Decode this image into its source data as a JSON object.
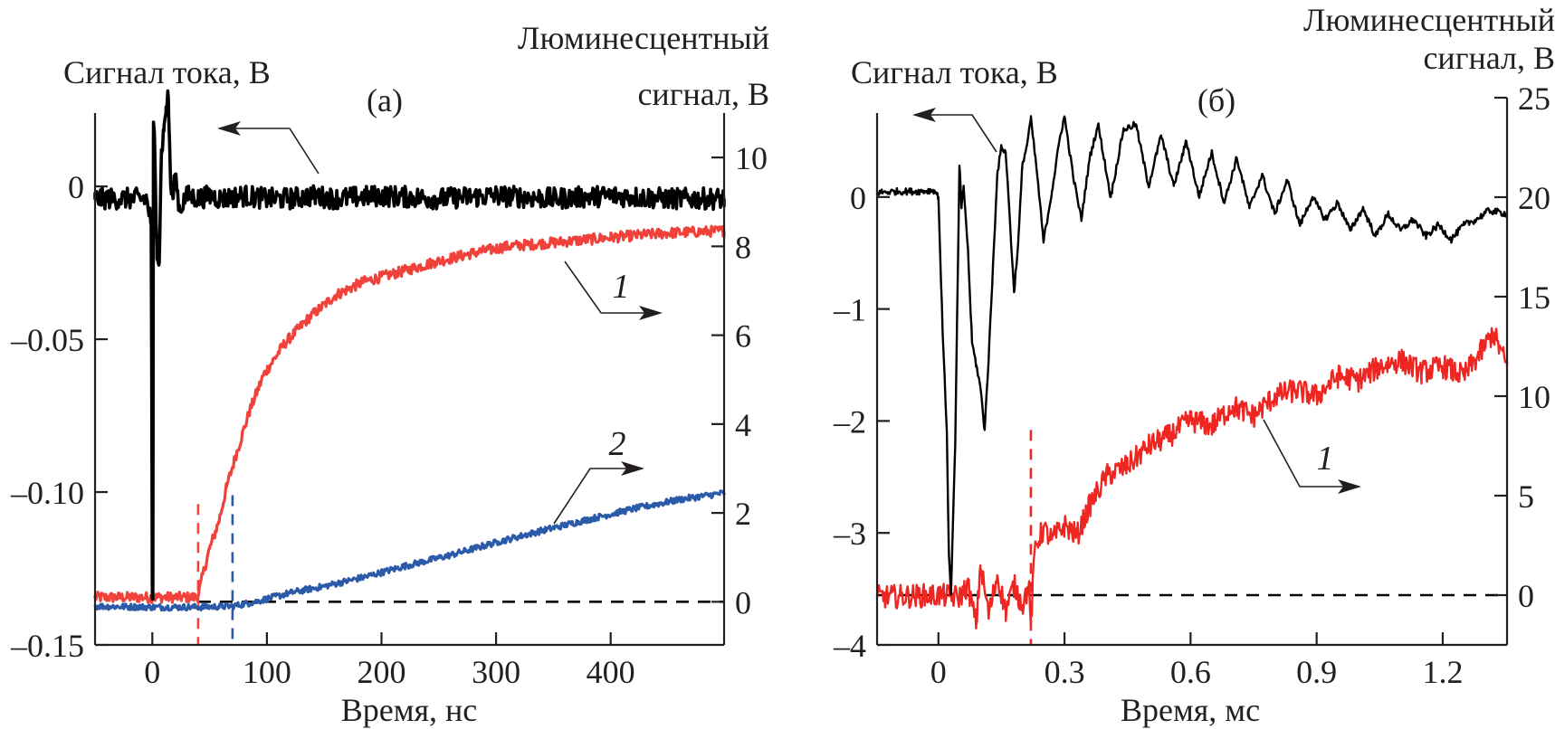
{
  "colors": {
    "current": "#000000",
    "lum1": "#f0413a",
    "lum1_b": "#ee2622",
    "lum2": "#2a5aa8",
    "baseline": "#000000",
    "text": "#231f20"
  },
  "chart_data": [
    {
      "id": "a",
      "type": "line",
      "panel_label": "(а)",
      "xlabel": "Время, нс",
      "ylabel_left": "Сигнал тока, В",
      "ylabel_right_line1": "Люминесцентный",
      "ylabel_right_line2": "сигнал, В",
      "xlim": [
        -50,
        499
      ],
      "ylim_left": [
        -0.15,
        0.024
      ],
      "ylim_right": [
        -0.97,
        11.0
      ],
      "x_ticks": [
        0,
        100,
        200,
        300,
        400
      ],
      "x_tick_labels": [
        "0",
        "100",
        "200",
        "300",
        "400"
      ],
      "y_left_ticks": [
        0,
        -0.05,
        -0.1,
        -0.15
      ],
      "y_left_tick_labels": [
        "0",
        "–0.05",
        "–0.10",
        "–0.15"
      ],
      "y_right_ticks": [
        0,
        2,
        4,
        6,
        8,
        10
      ],
      "y_right_tick_labels": [
        "0",
        "2",
        "4",
        "6",
        "8",
        "10"
      ],
      "grid": false,
      "series": [
        {
          "name": "current",
          "axis": "left",
          "color_key": "current",
          "x": [
            -50,
            -5,
            -1,
            0,
            0.5,
            1,
            2,
            4,
            6,
            8,
            10,
            12,
            14,
            16,
            18,
            20,
            22,
            24,
            28,
            32,
            40,
            50,
            60,
            80,
            100,
            120,
            140,
            160,
            200,
            250,
            300,
            350,
            400,
            450,
            499
          ],
          "y": [
            -0.004,
            -0.004,
            -0.012,
            -0.135,
            -0.135,
            0.021,
            0.015,
            -0.02,
            -0.025,
            0.012,
            0.018,
            0.026,
            0.029,
            0.0,
            -0.004,
            0.004,
            -0.002,
            -0.008,
            -0.004,
            -0.003,
            -0.004,
            -0.003,
            -0.004,
            -0.003,
            -0.004,
            -0.004,
            -0.003,
            -0.004,
            -0.003,
            -0.004,
            -0.003,
            -0.004,
            -0.003,
            -0.004,
            -0.004
          ],
          "noise_amplitude": 0.0035
        },
        {
          "name": "1",
          "axis": "right",
          "color_key": "lum1",
          "x": [
            -50,
            0,
            38,
            40,
            45,
            50,
            58,
            65,
            73,
            85,
            97,
            115,
            137,
            160,
            184,
            220,
            247,
            280,
            310,
            357,
            400,
            450,
            499
          ],
          "y": [
            0.1,
            0.1,
            0.1,
            0.15,
            0.7,
            1.2,
            1.8,
            2.6,
            3.3,
            4.3,
            5.1,
            5.8,
            6.4,
            6.9,
            7.2,
            7.45,
            7.65,
            7.85,
            8.0,
            8.1,
            8.2,
            8.3,
            8.35
          ],
          "noise_amplitude": 0.12
        },
        {
          "name": "2",
          "axis": "right",
          "color_key": "lum2",
          "x": [
            -50,
            0,
            40,
            70,
            90,
            120,
            150,
            184,
            220,
            260,
            302,
            340,
            380,
            421,
            460,
            499
          ],
          "y": [
            -0.1,
            -0.12,
            -0.12,
            -0.1,
            0.0,
            0.2,
            0.35,
            0.55,
            0.8,
            1.05,
            1.35,
            1.6,
            1.85,
            2.1,
            2.3,
            2.45
          ],
          "noise_amplitude": 0.07
        }
      ],
      "reference_lines": [
        {
          "type": "horizontal",
          "axis": "right",
          "value": 0,
          "style": "dashed",
          "color_key": "baseline",
          "x_from": 40,
          "x_to": 499
        },
        {
          "type": "vertical",
          "x": 40,
          "style": "dashed",
          "color_key": "lum1",
          "y_to_right": 2.2
        },
        {
          "type": "vertical",
          "x": 70,
          "style": "dashed",
          "color_key": "lum2",
          "y_to_right": 2.4
        }
      ],
      "annotations": [
        {
          "text": "",
          "target": "current",
          "arrow": "left",
          "note": "arrow points to left axis"
        },
        {
          "text": "1",
          "target": "1",
          "arrow": "right"
        },
        {
          "text": "2",
          "target": "2",
          "arrow": "right"
        }
      ]
    },
    {
      "id": "b",
      "type": "line",
      "panel_label": "(б)",
      "xlabel": "Время, мс",
      "ylabel_left": "Сигнал тока, В",
      "ylabel_right_line1": "Люминесцентный",
      "ylabel_right_line2": "сигнал, В",
      "xlim": [
        -0.146,
        1.353
      ],
      "ylim_left": [
        -4,
        0.75
      ],
      "ylim_right": [
        -2.5,
        25
      ],
      "x_ticks": [
        0,
        0.3,
        0.6,
        0.9,
        1.2
      ],
      "x_tick_labels": [
        "0",
        "0.3",
        "0.6",
        "0.9",
        "1.2"
      ],
      "y_left_ticks": [
        0,
        -1,
        -2,
        -3,
        -4
      ],
      "y_left_tick_labels": [
        "0",
        "–1",
        "–2",
        "–3",
        "–4"
      ],
      "y_right_ticks": [
        0,
        5,
        10,
        15,
        20,
        25
      ],
      "y_right_tick_labels": [
        "0",
        "5",
        "10",
        "15",
        "20",
        "25"
      ],
      "grid": false,
      "series": [
        {
          "name": "current",
          "axis": "left",
          "color_key": "current",
          "x": [
            -0.146,
            -0.1,
            -0.05,
            -0.01,
            0.0,
            0.01,
            0.02,
            0.025,
            0.03,
            0.04,
            0.05,
            0.055,
            0.06,
            0.07,
            0.08,
            0.09,
            0.1,
            0.11,
            0.12,
            0.13,
            0.14,
            0.15,
            0.16,
            0.17,
            0.18,
            0.19,
            0.2,
            0.21,
            0.22,
            0.235,
            0.25,
            0.27,
            0.29,
            0.3,
            0.32,
            0.34,
            0.36,
            0.38,
            0.41,
            0.44,
            0.47,
            0.5,
            0.53,
            0.56,
            0.59,
            0.62,
            0.65,
            0.68,
            0.71,
            0.74,
            0.77,
            0.8,
            0.83,
            0.86,
            0.89,
            0.92,
            0.95,
            0.98,
            1.01,
            1.04,
            1.07,
            1.1,
            1.13,
            1.16,
            1.19,
            1.22,
            1.25,
            1.28,
            1.31,
            1.353
          ],
          "y": [
            0.04,
            0.05,
            0.05,
            0.06,
            0.0,
            -1.2,
            -2.1,
            -3.2,
            -3.55,
            -2.2,
            0.28,
            -0.1,
            0.1,
            -0.45,
            -1.3,
            -1.5,
            -1.7,
            -2.08,
            -1.4,
            -0.6,
            0.2,
            0.45,
            0.4,
            -0.2,
            -0.85,
            -0.4,
            0.3,
            0.45,
            0.7,
            0.2,
            -0.4,
            0.05,
            0.55,
            0.72,
            0.2,
            -0.2,
            0.35,
            0.65,
            0.0,
            0.6,
            0.65,
            0.1,
            0.55,
            0.1,
            0.5,
            0.0,
            0.4,
            -0.05,
            0.35,
            -0.1,
            0.2,
            -0.15,
            0.15,
            -0.25,
            0.0,
            -0.2,
            -0.05,
            -0.3,
            -0.1,
            -0.35,
            -0.15,
            -0.3,
            -0.2,
            -0.35,
            -0.25,
            -0.38,
            -0.25,
            -0.2,
            -0.12,
            -0.15
          ],
          "noise_amplitude": 0.03
        },
        {
          "name": "1",
          "axis": "right",
          "color_key": "lum1_b",
          "x": [
            -0.146,
            0.0,
            0.05,
            0.07,
            0.09,
            0.1,
            0.12,
            0.14,
            0.16,
            0.18,
            0.2,
            0.215,
            0.22,
            0.23,
            0.25,
            0.27,
            0.3,
            0.33,
            0.36,
            0.4,
            0.45,
            0.5,
            0.55,
            0.6,
            0.65,
            0.7,
            0.75,
            0.8,
            0.85,
            0.9,
            0.95,
            1.0,
            1.05,
            1.1,
            1.15,
            1.2,
            1.25,
            1.3,
            1.32,
            1.353
          ],
          "y": [
            -0.1,
            0.0,
            -0.1,
            0.5,
            -1.5,
            1.5,
            -1.0,
            1.0,
            -0.8,
            0.5,
            -0.5,
            0.5,
            -1.5,
            2.5,
            3.3,
            2.8,
            3.5,
            3.0,
            4.5,
            6.0,
            6.5,
            7.5,
            8.0,
            8.8,
            8.5,
            9.5,
            9.0,
            10.0,
            10.3,
            10.0,
            11.0,
            10.8,
            11.5,
            11.8,
            11.2,
            11.5,
            11.0,
            12.5,
            13.2,
            11.5
          ],
          "noise_amplitude": 0.6
        }
      ],
      "reference_lines": [
        {
          "type": "horizontal",
          "axis": "right",
          "value": 0,
          "style": "dashed",
          "color_key": "baseline",
          "x_from": -0.146,
          "x_to": 1.353
        },
        {
          "type": "vertical",
          "x": 0.22,
          "style": "dashed",
          "color_key": "lum1_b",
          "y_to_right": 8.3
        }
      ],
      "annotations": [
        {
          "text": "",
          "target": "current",
          "arrow": "left"
        },
        {
          "text": "1",
          "target": "1",
          "arrow": "right"
        }
      ]
    }
  ]
}
